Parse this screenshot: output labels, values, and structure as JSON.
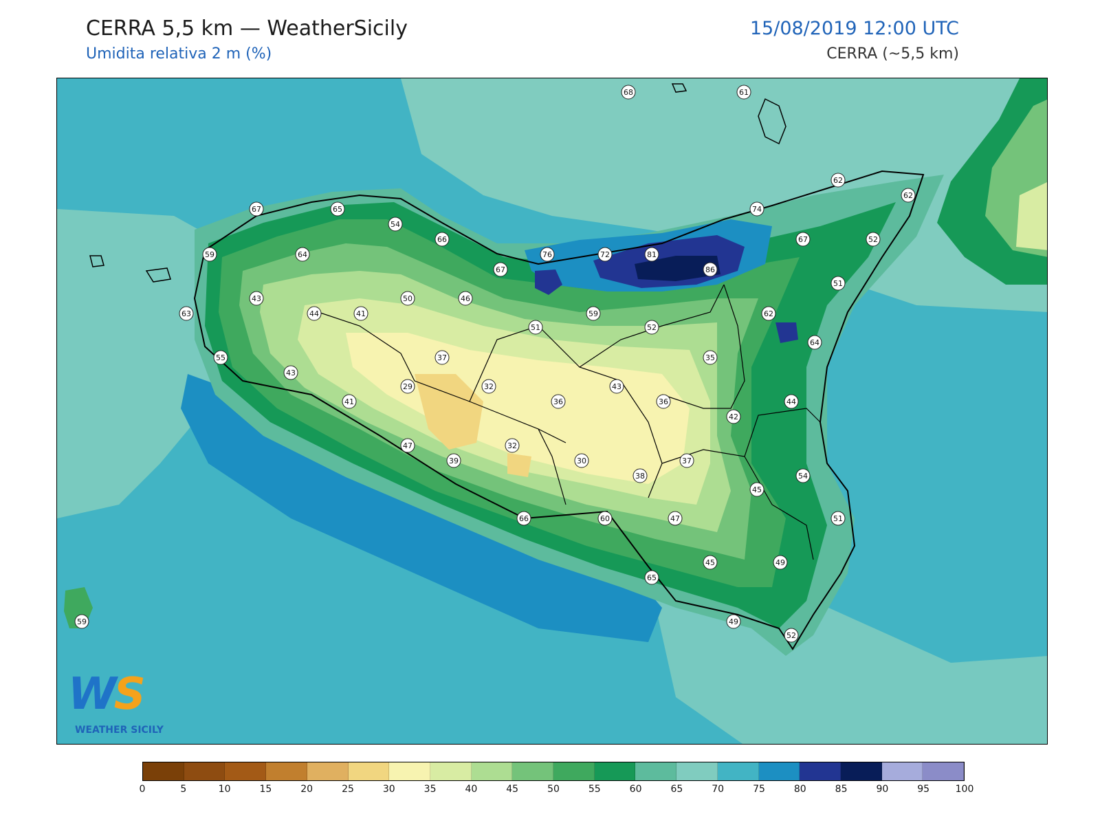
{
  "header": {
    "title": "CERRA 5,5 km — WeatherSicily",
    "subtitle": "Umidita relativa 2 m (%)",
    "datetime": "15/08/2019 12:00 UTC",
    "model": "CERRA (~5,5 km)"
  },
  "logo": {
    "letters_w": "W",
    "letters_s": "S",
    "text": "WEATHER SICILY"
  },
  "colorbar": {
    "ticks": [
      "0",
      "5",
      "10",
      "15",
      "20",
      "25",
      "30",
      "35",
      "40",
      "45",
      "50",
      "55",
      "60",
      "65",
      "70",
      "75",
      "80",
      "85",
      "90",
      "95",
      "100"
    ],
    "colors": [
      "#7a4008",
      "#8e4c11",
      "#a35a16",
      "#c17f2e",
      "#e0b060",
      "#f1d680",
      "#f7f3b0",
      "#d8eca3",
      "#addd92",
      "#74c37a",
      "#3fa95e",
      "#169957",
      "#5dbb9d",
      "#80ccbf",
      "#42b4c4",
      "#1c8fc2",
      "#223592",
      "#081d58",
      "#a6acdc",
      "#8b8cc8"
    ]
  },
  "stations": [
    {
      "v": "68"
    },
    {
      "v": "61"
    },
    {
      "v": "62"
    },
    {
      "v": "62"
    },
    {
      "v": "67"
    },
    {
      "v": "65"
    },
    {
      "v": "54"
    },
    {
      "v": "66"
    },
    {
      "v": "74"
    },
    {
      "v": "67"
    },
    {
      "v": "52"
    },
    {
      "v": "59"
    },
    {
      "v": "64"
    },
    {
      "v": "76"
    },
    {
      "v": "72"
    },
    {
      "v": "81"
    },
    {
      "v": "86"
    },
    {
      "v": "67"
    },
    {
      "v": "51"
    },
    {
      "v": "43"
    },
    {
      "v": "50"
    },
    {
      "v": "46"
    },
    {
      "v": "63"
    },
    {
      "v": "44"
    },
    {
      "v": "41"
    },
    {
      "v": "51"
    },
    {
      "v": "59"
    },
    {
      "v": "52"
    },
    {
      "v": "62"
    },
    {
      "v": "64"
    },
    {
      "v": "55"
    },
    {
      "v": "37"
    },
    {
      "v": "35"
    },
    {
      "v": "43"
    },
    {
      "v": "29"
    },
    {
      "v": "32"
    },
    {
      "v": "36"
    },
    {
      "v": "43"
    },
    {
      "v": "36"
    },
    {
      "v": "41"
    },
    {
      "v": "44"
    },
    {
      "v": "42"
    },
    {
      "v": "47"
    },
    {
      "v": "32"
    },
    {
      "v": "30"
    },
    {
      "v": "37"
    },
    {
      "v": "39"
    },
    {
      "v": "38"
    },
    {
      "v": "54"
    },
    {
      "v": "45"
    },
    {
      "v": "66"
    },
    {
      "v": "60"
    },
    {
      "v": "47"
    },
    {
      "v": "51"
    },
    {
      "v": "45"
    },
    {
      "v": "49"
    },
    {
      "v": "65"
    },
    {
      "v": "59"
    },
    {
      "v": "49"
    },
    {
      "v": "52"
    }
  ]
}
